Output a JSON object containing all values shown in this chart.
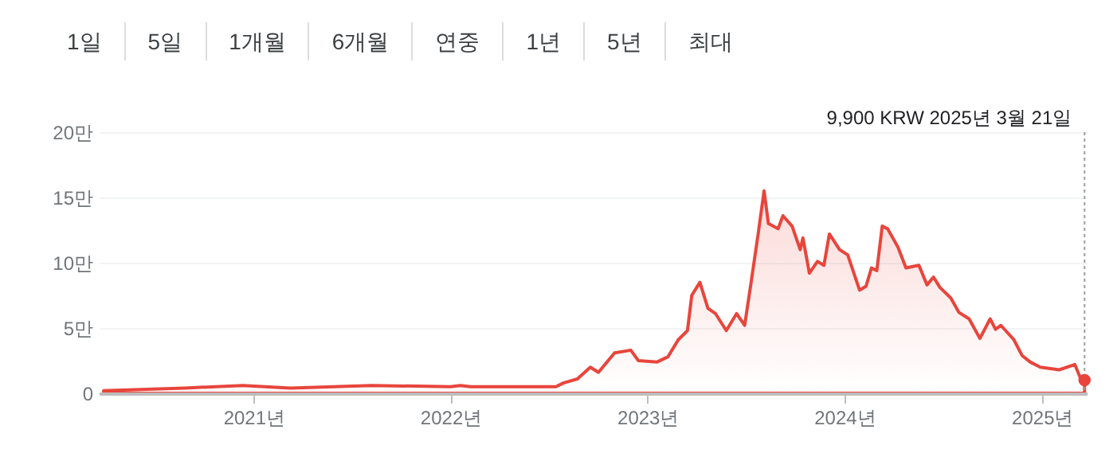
{
  "chart_data": {
    "type": "area",
    "x": [
      "2020-03-29",
      "2020-08-26",
      "2020-12-12",
      "2021-03-10",
      "2021-08-07",
      "2022-01-01",
      "2022-01-19",
      "2022-02-07",
      "2022-07-15",
      "2022-07-30",
      "2022-08-24",
      "2022-09-17",
      "2022-10-02",
      "2022-11-01",
      "2022-12-01",
      "2022-12-15",
      "2023-01-19",
      "2023-02-08",
      "2023-02-27",
      "2023-03-16",
      "2023-03-24",
      "2023-04-08",
      "2023-04-23",
      "2023-05-07",
      "2023-05-27",
      "2023-06-15",
      "2023-06-30",
      "2023-07-12",
      "2023-07-25",
      "2023-08-05",
      "2023-08-13",
      "2023-08-31",
      "2023-09-09",
      "2023-09-26",
      "2023-10-11",
      "2023-10-16",
      "2023-10-28",
      "2023-11-12",
      "2023-11-24",
      "2023-12-04",
      "2023-12-23",
      "2024-01-07",
      "2024-01-29",
      "2024-02-10",
      "2024-02-20",
      "2024-03-01",
      "2024-03-11",
      "2024-03-21",
      "2024-04-09",
      "2024-04-24",
      "2024-05-18",
      "2024-06-02",
      "2024-06-14",
      "2024-06-26",
      "2024-07-16",
      "2024-07-31",
      "2024-08-19",
      "2024-09-08",
      "2024-09-27",
      "2024-10-07",
      "2024-10-17",
      "2024-11-10",
      "2024-11-25",
      "2024-12-10",
      "2024-12-29",
      "2025-02-02",
      "2025-03-03",
      "2025-03-13",
      "2025-03-21"
    ],
    "series": [
      {
        "color": "#e8453c",
        "values": [
          0.2,
          0.4,
          0.6,
          0.4,
          0.6,
          0.5,
          0.6,
          0.5,
          0.5,
          0.8,
          1.1,
          2,
          1.6,
          3.1,
          3.3,
          2.5,
          2.4,
          2.8,
          4.1,
          4.8,
          7.5,
          8.5,
          6.5,
          6.1,
          4.8,
          6.1,
          5.2,
          8.5,
          12.2,
          15.5,
          13,
          12.6,
          13.6,
          12.8,
          11,
          11.9,
          9.2,
          10.1,
          9.8,
          12.2,
          11,
          10.6,
          7.9,
          8.2,
          9.6,
          9.4,
          12.8,
          12.6,
          11.2,
          9.6,
          9.8,
          8.3,
          8.9,
          8.1,
          7.3,
          6.2,
          5.7,
          4.2,
          5.7,
          4.9,
          5.2,
          4.1,
          2.9,
          2.4,
          2,
          1.8,
          2.2,
          1.2,
          1
        ]
      }
    ],
    "xlim": [
      "2020-03-20",
      "2025-03-25"
    ],
    "xticks": [
      {
        "value": "2021",
        "label": "2021년"
      },
      {
        "value": "2022",
        "label": "2022년"
      },
      {
        "value": "2023",
        "label": "2023년"
      },
      {
        "value": "2024",
        "label": "2024년"
      },
      {
        "value": "2025",
        "label": "2025년"
      }
    ],
    "ylim": [
      0,
      20
    ],
    "yticks": [
      0,
      {
        "value": 5,
        "label": "5만"
      },
      {
        "value": 10,
        "label": "10만"
      },
      {
        "value": 15,
        "label": "15만"
      },
      {
        "value": 20,
        "label": "20만"
      }
    ],
    "grid": "y",
    "ref_lines": [
      {
        "axis": "x",
        "value": "2025-03-21",
        "line_style": "dotted",
        "color": "#9e9e9e",
        "label": "9,900 KRW  2025년 3월 21일"
      }
    ],
    "annotations": [
      "1일",
      "5일",
      "1개월",
      "6개월",
      "연중",
      "1년",
      "5년",
      "최대"
    ]
  }
}
